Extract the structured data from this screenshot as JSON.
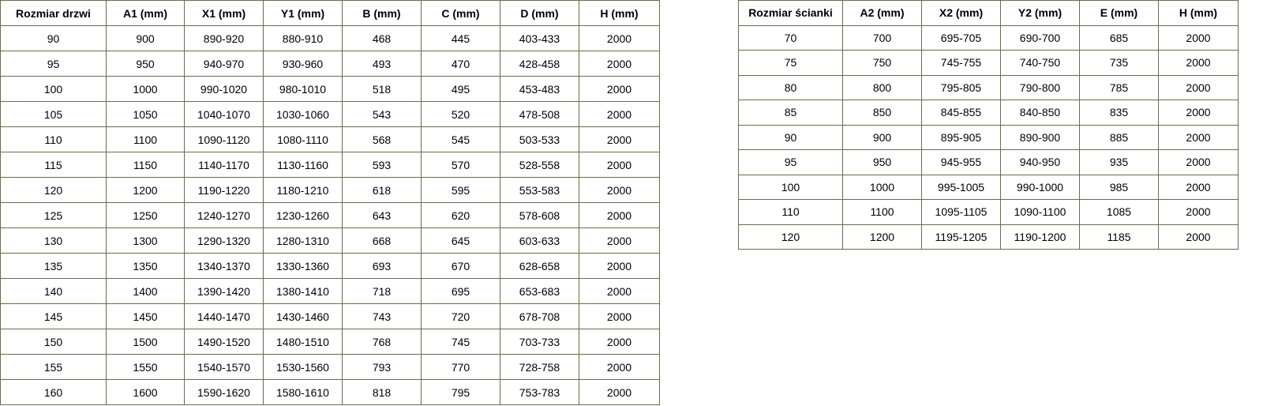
{
  "doors_table": {
    "headers": [
      "Rozmiar drzwi",
      "A1 (mm)",
      "X1 (mm)",
      "Y1 (mm)",
      "B (mm)",
      "C (mm)",
      "D (mm)",
      "H (mm)"
    ],
    "rows": [
      [
        "90",
        "900",
        "890-920",
        "880-910",
        "468",
        "445",
        "403-433",
        "2000"
      ],
      [
        "95",
        "950",
        "940-970",
        "930-960",
        "493",
        "470",
        "428-458",
        "2000"
      ],
      [
        "100",
        "1000",
        "990-1020",
        "980-1010",
        "518",
        "495",
        "453-483",
        "2000"
      ],
      [
        "105",
        "1050",
        "1040-1070",
        "1030-1060",
        "543",
        "520",
        "478-508",
        "2000"
      ],
      [
        "110",
        "1100",
        "1090-1120",
        "1080-1110",
        "568",
        "545",
        "503-533",
        "2000"
      ],
      [
        "115",
        "1150",
        "1140-1170",
        "1130-1160",
        "593",
        "570",
        "528-558",
        "2000"
      ],
      [
        "120",
        "1200",
        "1190-1220",
        "1180-1210",
        "618",
        "595",
        "553-583",
        "2000"
      ],
      [
        "125",
        "1250",
        "1240-1270",
        "1230-1260",
        "643",
        "620",
        "578-608",
        "2000"
      ],
      [
        "130",
        "1300",
        "1290-1320",
        "1280-1310",
        "668",
        "645",
        "603-633",
        "2000"
      ],
      [
        "135",
        "1350",
        "1340-1370",
        "1330-1360",
        "693",
        "670",
        "628-658",
        "2000"
      ],
      [
        "140",
        "1400",
        "1390-1420",
        "1380-1410",
        "718",
        "695",
        "653-683",
        "2000"
      ],
      [
        "145",
        "1450",
        "1440-1470",
        "1430-1460",
        "743",
        "720",
        "678-708",
        "2000"
      ],
      [
        "150",
        "1500",
        "1490-1520",
        "1480-1510",
        "768",
        "745",
        "703-733",
        "2000"
      ],
      [
        "155",
        "1550",
        "1540-1570",
        "1530-1560",
        "793",
        "770",
        "728-758",
        "2000"
      ],
      [
        "160",
        "1600",
        "1590-1620",
        "1580-1610",
        "818",
        "795",
        "753-783",
        "2000"
      ]
    ]
  },
  "walls_table": {
    "headers": [
      "Rozmiar ścianki",
      "A2 (mm)",
      "X2 (mm)",
      "Y2 (mm)",
      "E (mm)",
      "H (mm)"
    ],
    "rows": [
      [
        "70",
        "700",
        "695-705",
        "690-700",
        "685",
        "2000"
      ],
      [
        "75",
        "750",
        "745-755",
        "740-750",
        "735",
        "2000"
      ],
      [
        "80",
        "800",
        "795-805",
        "790-800",
        "785",
        "2000"
      ],
      [
        "85",
        "850",
        "845-855",
        "840-850",
        "835",
        "2000"
      ],
      [
        "90",
        "900",
        "895-905",
        "890-900",
        "885",
        "2000"
      ],
      [
        "95",
        "950",
        "945-955",
        "940-950",
        "935",
        "2000"
      ],
      [
        "100",
        "1000",
        "995-1005",
        "990-1000",
        "985",
        "2000"
      ],
      [
        "110",
        "1100",
        "1095-1105",
        "1090-1100",
        "1085",
        "2000"
      ],
      [
        "120",
        "1200",
        "1195-1205",
        "1190-1200",
        "1185",
        "2000"
      ]
    ]
  }
}
